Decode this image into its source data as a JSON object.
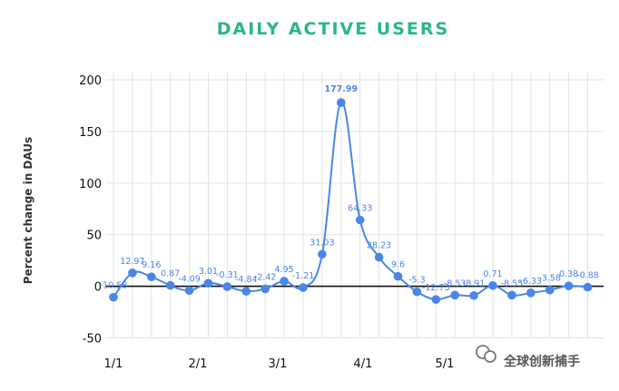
{
  "chart_data": {
    "type": "line",
    "title": "DAILY ACTIVE USERS",
    "ylabel": "Percent change in DAUs",
    "xlabel": "",
    "ylim": [
      -50,
      200
    ],
    "yticks": [
      -50,
      0,
      50,
      100,
      150,
      200
    ],
    "xtick_labels": [
      "1/1",
      "2/1",
      "3/1",
      "4/1",
      "5/1"
    ],
    "grid": true,
    "point_labels": [
      "-10.58",
      "12.97",
      "9.16",
      "0.87",
      "-4.09",
      "3.01",
      "-0.31",
      "-4.84",
      "-2.42",
      "4.95",
      "-1.21",
      "31.03",
      "177.99",
      "64.33",
      "28.23",
      "9.6",
      "-5.3",
      "-12.73",
      "-8.53",
      "-8.91",
      "0.71",
      "-8.55",
      "-6.33",
      "-3.58",
      "0.38",
      "-0.88"
    ],
    "series": [
      {
        "values": [
          -10.58,
          12.97,
          9.16,
          0.87,
          -4.09,
          3.01,
          -0.31,
          -4.84,
          -2.42,
          4.95,
          -1.21,
          31.03,
          177.99,
          64.33,
          28.23,
          9.6,
          -5.3,
          -12.73,
          -8.53,
          -8.91,
          0.71,
          -8.55,
          -6.33,
          -3.58,
          0.38,
          -0.88
        ]
      }
    ],
    "colors": {
      "title": "#2bb58a",
      "line": "#4a86e8",
      "zero_line": "#111111"
    }
  },
  "watermark": {
    "text": "全球创新捕手"
  }
}
